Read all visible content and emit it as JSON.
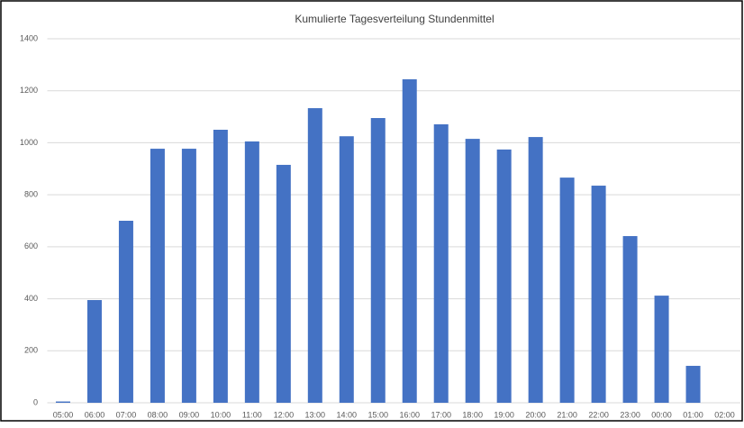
{
  "chart_data": {
    "type": "bar",
    "title": "Kumulierte Tagesverteilung Stundenmittel",
    "categories": [
      "05:00",
      "06:00",
      "07:00",
      "08:00",
      "09:00",
      "10:00",
      "11:00",
      "12:00",
      "13:00",
      "14:00",
      "15:00",
      "16:00",
      "17:00",
      "18:00",
      "19:00",
      "20:00",
      "21:00",
      "22:00",
      "23:00",
      "00:00",
      "01:00",
      "02:00"
    ],
    "values": [
      5,
      395,
      700,
      977,
      977,
      1050,
      1005,
      915,
      1133,
      1025,
      1095,
      1244,
      1071,
      1015,
      974,
      1022,
      866,
      835,
      641,
      412,
      142,
      0
    ],
    "color": "#4472c4",
    "ylim": [
      0,
      1400
    ],
    "yticks": [
      0,
      200,
      400,
      600,
      800,
      1000,
      1200,
      1400
    ],
    "grid": true
  }
}
